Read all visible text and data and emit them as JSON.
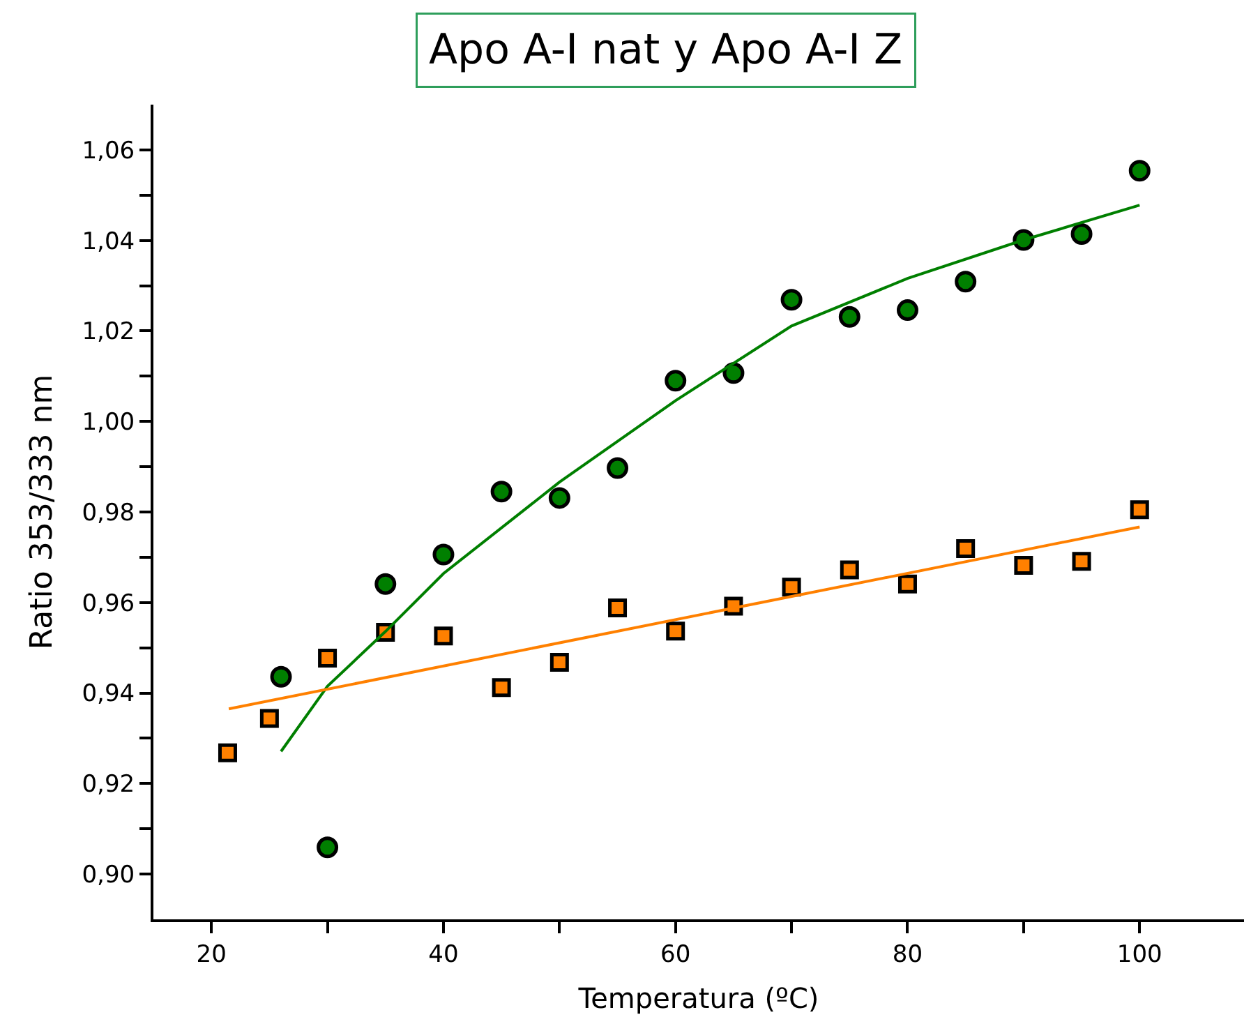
{
  "chart_data": {
    "type": "scatter",
    "title": "Apo A-I nat y Apo A-I Z",
    "xlabel": "Temperatura (ºC)",
    "ylabel": "Ratio 353/333 nm",
    "xlim": [
      15,
      109
    ],
    "ylim": [
      0.89,
      1.07
    ],
    "xticks": [
      20,
      {
        "value": 30,
        "label": null
      },
      40,
      {
        "value": 50,
        "label": null
      },
      60,
      {
        "value": 70,
        "label": null
      },
      80,
      {
        "value": 90,
        "label": null
      },
      100
    ],
    "yticks": [
      {
        "value": 0.9,
        "label": "0,90"
      },
      {
        "value": 0.91,
        "label": null
      },
      {
        "value": 0.92,
        "label": "0,92"
      },
      {
        "value": 0.93,
        "label": null
      },
      {
        "value": 0.94,
        "label": "0,94"
      },
      {
        "value": 0.95,
        "label": null
      },
      {
        "value": 0.96,
        "label": "0,96"
      },
      {
        "value": 0.97,
        "label": null
      },
      {
        "value": 0.98,
        "label": "0,98"
      },
      {
        "value": 0.99,
        "label": null
      },
      {
        "value": 1.0,
        "label": "1,00"
      },
      {
        "value": 1.01,
        "label": null
      },
      {
        "value": 1.02,
        "label": "1,02"
      },
      {
        "value": 1.03,
        "label": null
      },
      {
        "value": 1.04,
        "label": "1,04"
      },
      {
        "value": 1.05,
        "label": null
      },
      {
        "value": 1.06,
        "label": "1,06"
      }
    ],
    "series": [
      {
        "marker": "circle",
        "color": "#007f00",
        "x": [
          26,
          30,
          35,
          40,
          45,
          50,
          55,
          60,
          65,
          70,
          75,
          80,
          85,
          90,
          95,
          100
        ],
        "values": [
          0.9436,
          0.9059,
          0.9641,
          0.9706,
          0.9845,
          0.9831,
          0.9897,
          1.009,
          1.0107,
          1.0269,
          1.0231,
          1.0246,
          1.0309,
          1.0401,
          1.0414,
          1.0554
        ]
      },
      {
        "marker": "square",
        "color": "#ff8000",
        "x": [
          21.4,
          25,
          30,
          35,
          40,
          45,
          50,
          55,
          60,
          65,
          70,
          75,
          80,
          85,
          90,
          95,
          100
        ],
        "values": [
          0.9268,
          0.9344,
          0.9477,
          0.9534,
          0.9526,
          0.9412,
          0.9468,
          0.9588,
          0.9537,
          0.9592,
          0.9634,
          0.9672,
          0.9641,
          0.9719,
          0.9682,
          0.9691,
          0.9805
        ]
      },
      {
        "type": "line",
        "marker": "none",
        "color": "#007f00",
        "x": [
          26,
          30,
          35,
          40,
          50,
          60,
          70,
          80,
          90,
          100
        ],
        "values": [
          0.9271,
          0.9415,
          0.9536,
          0.9664,
          0.9866,
          1.0046,
          1.0211,
          1.0316,
          1.0401,
          1.0478
        ]
      },
      {
        "type": "line",
        "marker": "none",
        "color": "#ff8000",
        "x": [
          21.5,
          100
        ],
        "values": [
          0.9365,
          0.9767
        ]
      }
    ]
  }
}
